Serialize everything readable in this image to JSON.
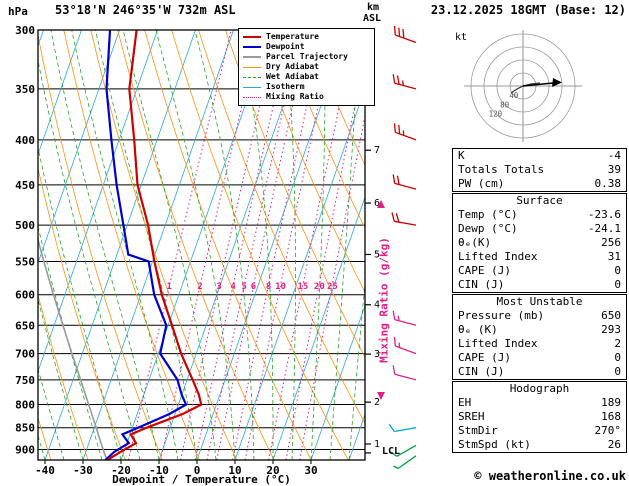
{
  "header": {
    "left_unit": "hPa",
    "station": "53°18'N 246°35'W 732m ASL",
    "datetime": "23.12.2025 18GMT (Base: 12)",
    "km_label": "km",
    "asl_label": "ASL"
  },
  "legend": {
    "items": [
      {
        "label": "Temperature",
        "color": "#cc0000",
        "dash": "solid",
        "weight": 2
      },
      {
        "label": "Dewpoint",
        "color": "#0000cc",
        "dash": "solid",
        "weight": 2
      },
      {
        "label": "Parcel Trajectory",
        "color": "#9a9a9a",
        "dash": "solid",
        "weight": 2
      },
      {
        "label": "Dry Adiabat",
        "color": "#ff9214",
        "dash": "solid",
        "weight": 1
      },
      {
        "label": "Wet Adiabat",
        "color": "#27a427",
        "dash": "dashed",
        "weight": 1
      },
      {
        "label": "Isotherm",
        "color": "#2fa7dd",
        "dash": "solid",
        "weight": 1
      },
      {
        "label": "Mixing Ratio",
        "color": "#e0218a",
        "dash": "dotted",
        "weight": 1
      }
    ]
  },
  "axes": {
    "x_label": "Dewpoint / Temperature (°C)",
    "mixing_label": "Mixing Ratio (g/kg)",
    "lcl": "LCL",
    "kt": "kt"
  },
  "chart_data": {
    "type": "line",
    "subtype": "skewt-logp-sounding",
    "title": "Skew-T log-P sounding 53°18'N 246°35'W 732m ASL 23.12.2025 18GMT",
    "pressure_range_hpa": [
      300,
      925
    ],
    "x_range_c": [
      -40,
      38
    ],
    "isobars_hpa": [
      300,
      350,
      400,
      450,
      500,
      550,
      600,
      650,
      700,
      750,
      800,
      850,
      900
    ],
    "x_ticks_c": [
      -40,
      -30,
      -20,
      -10,
      0,
      10,
      20,
      30
    ],
    "isotherm_step_c": 10,
    "dry_adiabat_step_k": 10,
    "wet_adiabat_start_step_c": 5,
    "mixing_ratio_lines_gkg": [
      1,
      2,
      3,
      4,
      5,
      6,
      8,
      10,
      15,
      20,
      25
    ],
    "km_ticks": [
      {
        "km": 1,
        "p": 887
      },
      {
        "km": 2,
        "p": 795
      },
      {
        "km": 3,
        "p": 701
      },
      {
        "km": 4,
        "p": 616
      },
      {
        "km": 5,
        "p": 540
      },
      {
        "km": 6,
        "p": 472
      },
      {
        "km": 7,
        "p": 411
      }
    ],
    "lcl_pressure_hpa": 908,
    "colors": {
      "temperature": "#cc0000",
      "dewpoint": "#0000cc",
      "parcel": "#9a9a9a",
      "dry_adiabat": "#ff9214",
      "wet_adiabat": "#27a427",
      "isotherm": "#2fa7dd",
      "mixing_ratio": "#e0218a",
      "isobar": "#000000"
    },
    "temperature_profile": [
      [
        925,
        -23.6
      ],
      [
        905,
        -20.8
      ],
      [
        885,
        -17.6
      ],
      [
        865,
        -19.8
      ],
      [
        850,
        -16.2
      ],
      [
        820,
        -8.0
      ],
      [
        800,
        -4.0
      ],
      [
        780,
        -5.5
      ],
      [
        750,
        -8.5
      ],
      [
        700,
        -14.0
      ],
      [
        650,
        -19.0
      ],
      [
        600,
        -24.5
      ],
      [
        550,
        -29.5
      ],
      [
        500,
        -34.5
      ],
      [
        450,
        -41.0
      ],
      [
        400,
        -46.0
      ],
      [
        350,
        -52.0
      ],
      [
        300,
        -55.5
      ]
    ],
    "dewpoint_profile": [
      [
        925,
        -24.1
      ],
      [
        905,
        -22.5
      ],
      [
        885,
        -19.5
      ],
      [
        865,
        -22.0
      ],
      [
        850,
        -18.5
      ],
      [
        820,
        -11.5
      ],
      [
        800,
        -8.0
      ],
      [
        780,
        -10.0
      ],
      [
        750,
        -12.5
      ],
      [
        700,
        -19.5
      ],
      [
        650,
        -20.5
      ],
      [
        600,
        -26.5
      ],
      [
        550,
        -31.0
      ],
      [
        540,
        -37.0
      ],
      [
        500,
        -41.0
      ],
      [
        450,
        -46.5
      ],
      [
        400,
        -52.0
      ],
      [
        350,
        -58.0
      ],
      [
        300,
        -62.5
      ]
    ],
    "parcel_profile": [
      [
        925,
        -23.6
      ],
      [
        910,
        -24.9
      ],
      [
        880,
        -27.2
      ],
      [
        850,
        -29.5
      ],
      [
        800,
        -33.6
      ],
      [
        750,
        -38.0
      ],
      [
        700,
        -42.7
      ],
      [
        650,
        -47.7
      ],
      [
        600,
        -53.0
      ],
      [
        550,
        -58.6
      ],
      [
        500,
        -64.5
      ],
      [
        450,
        -70.8
      ],
      [
        400,
        -77.5
      ]
    ],
    "wind_barbs": [
      {
        "p": 310,
        "spd": 30,
        "dir": 290,
        "color": "#cc0000"
      },
      {
        "p": 350,
        "spd": 25,
        "dir": 285,
        "color": "#cc0000"
      },
      {
        "p": 400,
        "spd": 25,
        "dir": 290,
        "color": "#cc0000"
      },
      {
        "p": 455,
        "spd": 20,
        "dir": 285,
        "color": "#cc0000"
      },
      {
        "p": 500,
        "spd": 20,
        "dir": 280,
        "color": "#cc0000"
      },
      {
        "p": 650,
        "spd": 15,
        "dir": 285,
        "color": "#e0218a"
      },
      {
        "p": 700,
        "spd": 15,
        "dir": 290,
        "color": "#e0218a"
      },
      {
        "p": 750,
        "spd": 10,
        "dir": 285,
        "color": "#e0218a"
      },
      {
        "p": 850,
        "spd": 10,
        "dir": 260,
        "color": "#00b0c8"
      },
      {
        "p": 890,
        "spd": 10,
        "dir": 240,
        "color": "#00a040"
      },
      {
        "p": 915,
        "spd": 5,
        "dir": 235,
        "color": "#00a040"
      }
    ]
  },
  "hodograph": {
    "unit": "kt",
    "rings_kt": [
      40,
      80,
      120,
      160
    ],
    "ring_labels": [
      "40",
      "80",
      "120"
    ],
    "storm_dir_deg": 270,
    "storm_spd_kt": 26
  },
  "table": {
    "indices": {
      "rows": [
        {
          "label": "K",
          "value": "-4"
        },
        {
          "label": "Totals Totals",
          "value": "39"
        },
        {
          "label": "PW (cm)",
          "value": "0.38"
        }
      ]
    },
    "surface": {
      "title": "Surface",
      "rows": [
        {
          "label": "Temp (°C)",
          "value": "-23.6"
        },
        {
          "label": "Dewp (°C)",
          "value": "-24.1"
        },
        {
          "label": "θₑ(K)",
          "value": "256"
        },
        {
          "label": "Lifted Index",
          "value": "31"
        },
        {
          "label": "CAPE (J)",
          "value": "0"
        },
        {
          "label": "CIN (J)",
          "value": "0"
        }
      ]
    },
    "most_unstable": {
      "title": "Most Unstable",
      "rows": [
        {
          "label": "Pressure (mb)",
          "value": "650"
        },
        {
          "label": "θₑ (K)",
          "value": "293"
        },
        {
          "label": "Lifted Index",
          "value": "2"
        },
        {
          "label": "CAPE (J)",
          "value": "0"
        },
        {
          "label": "CIN (J)",
          "value": "0"
        }
      ]
    },
    "hodograph": {
      "title": "Hodograph",
      "rows": [
        {
          "label": "EH",
          "value": "189"
        },
        {
          "label": "SREH",
          "value": "168"
        },
        {
          "label": "StmDir",
          "value": "270°"
        },
        {
          "label": "StmSpd (kt)",
          "value": "26"
        }
      ]
    }
  },
  "footer": {
    "credit": "© weatheronline.co.uk"
  }
}
